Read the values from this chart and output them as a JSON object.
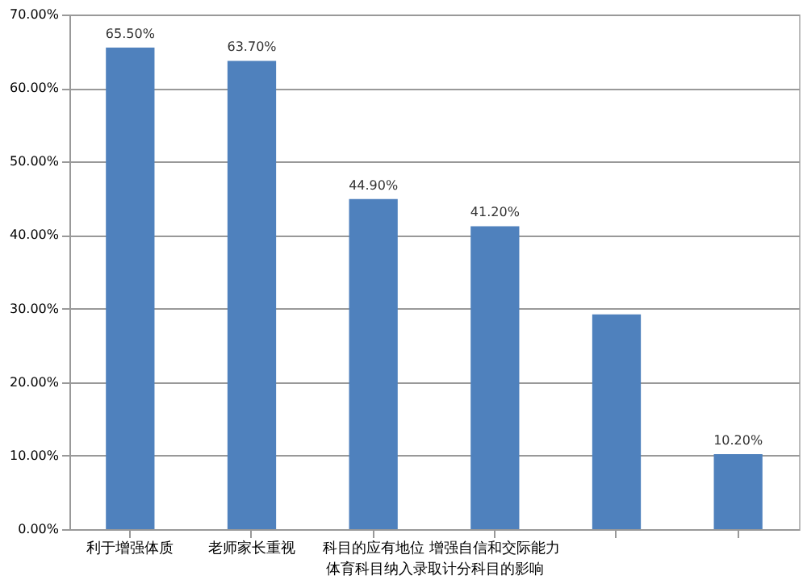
{
  "chart_data": {
    "type": "bar",
    "xlabel": "体育科目纳入录取计分科目的影响",
    "categories": [
      "利于增强体质",
      "老师家长重视",
      "科目的应有地位",
      "增强自信和交际能力",
      null,
      null
    ],
    "values": [
      65.5,
      63.7,
      44.9,
      41.2,
      29.2,
      10.2
    ],
    "value_labels": [
      "65.50%",
      "63.70%",
      "44.90%",
      "41.20%",
      null,
      "10.20%"
    ],
    "color": "#4f81bd",
    "ylim": [
      0,
      70
    ],
    "yticks": [
      {
        "value": 0,
        "label": "0.00%"
      },
      {
        "value": 10,
        "label": "10.00%"
      },
      {
        "value": 20,
        "label": "20.00%"
      },
      {
        "value": 30,
        "label": "30.00%"
      },
      {
        "value": 40,
        "label": "40.00%"
      },
      {
        "value": 50,
        "label": "50.00%"
      },
      {
        "value": 60,
        "label": "60.00%"
      },
      {
        "value": 70,
        "label": "70.00%"
      }
    ],
    "grid": "y"
  }
}
